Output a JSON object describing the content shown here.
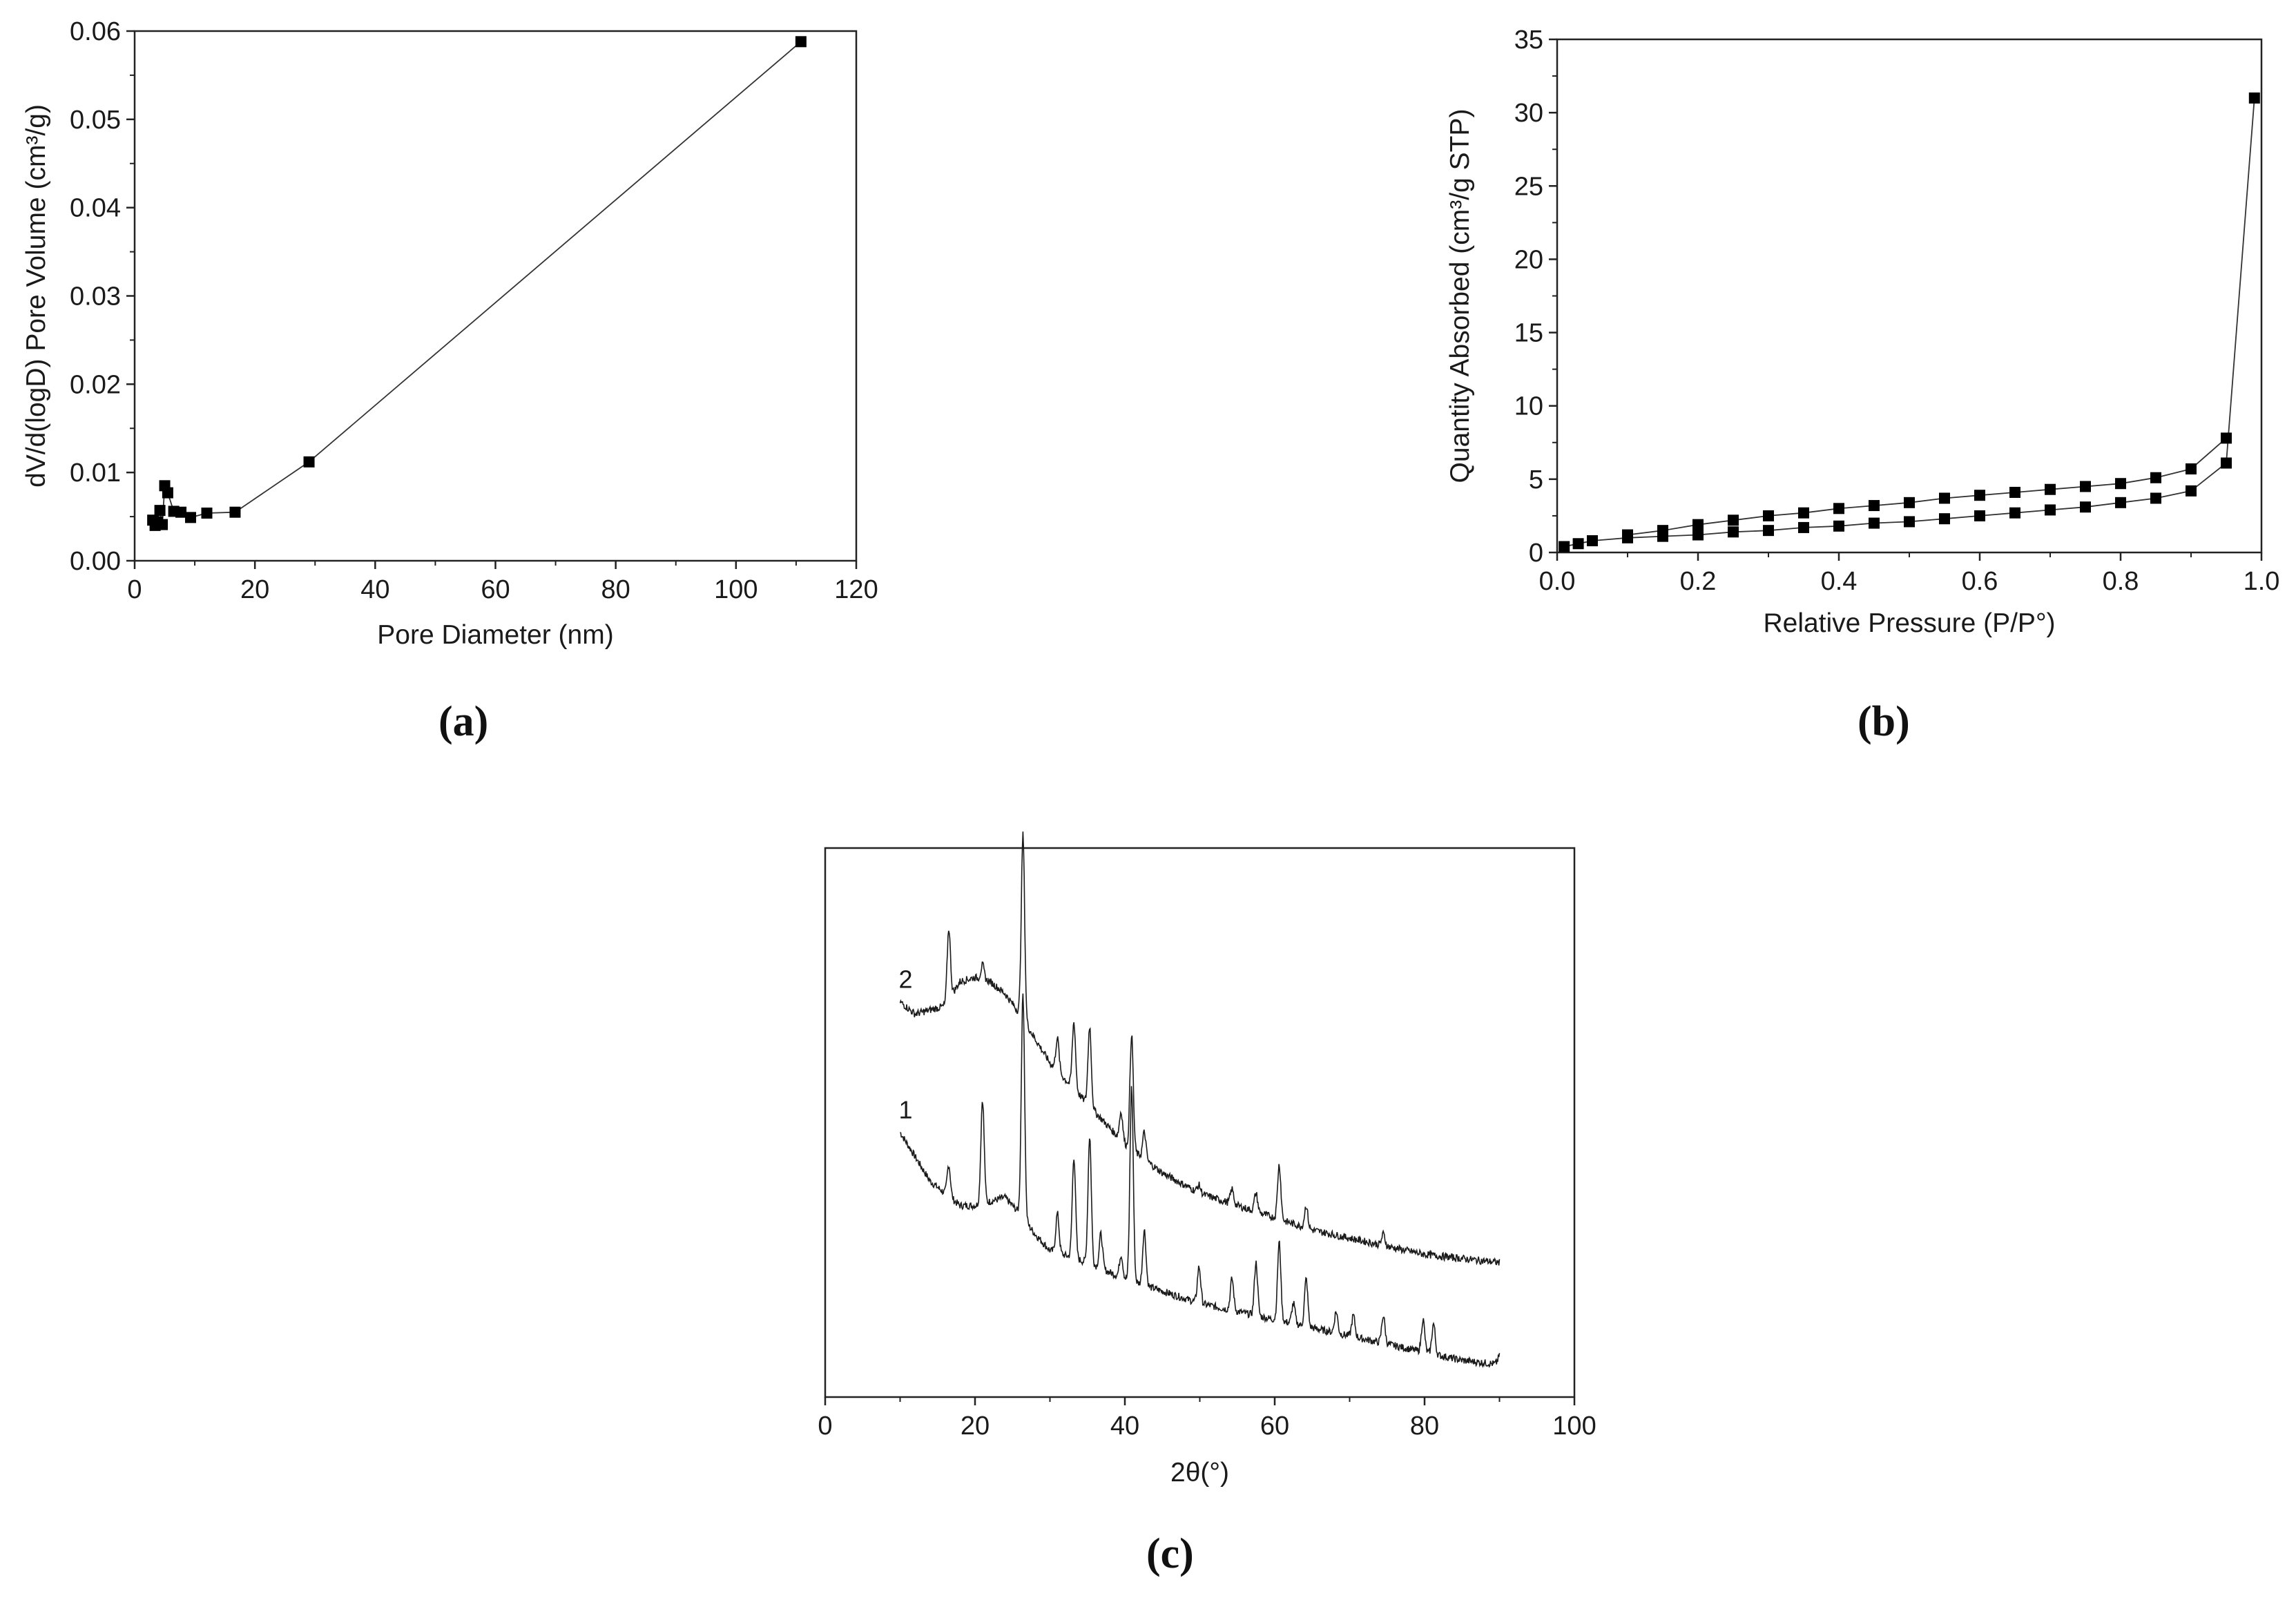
{
  "chart_data": [
    {
      "id": "a",
      "caption": "(a)",
      "type": "line",
      "xlabel": "Pore Diameter (nm)",
      "ylabel": "dV/d(logD) Pore Volume (cm³/g)",
      "xlim": [
        0,
        120
      ],
      "ylim": [
        0,
        0.06
      ],
      "xticks": [
        "0",
        "20",
        "40",
        "60",
        "80",
        "100",
        "120"
      ],
      "yticks": [
        "0.00",
        "0.01",
        "0.02",
        "0.03",
        "0.04",
        "0.05",
        "0.06"
      ],
      "marker": "square",
      "series": [
        {
          "x": [
            3.0,
            3.4,
            3.8,
            4.2,
            4.6,
            5.0,
            5.5,
            6.5,
            7.7,
            9.3,
            12.0,
            16.7,
            29.0,
            110.8
          ],
          "y": [
            0.0046,
            0.004,
            0.0044,
            0.0057,
            0.0041,
            0.0085,
            0.0077,
            0.0056,
            0.0055,
            0.0049,
            0.0054,
            0.0055,
            0.0112,
            0.0588
          ]
        }
      ]
    },
    {
      "id": "b",
      "caption": "(b)",
      "type": "line",
      "xlabel": "Relative Pressure (P/P°)",
      "ylabel": "Quantity Absorbed (cm³/g STP)",
      "xlim": [
        0,
        1.0
      ],
      "ylim": [
        0,
        35
      ],
      "xticks": [
        "0.0",
        "0.2",
        "0.4",
        "0.6",
        "0.8",
        "1.0"
      ],
      "yticks": [
        "0",
        "5",
        "10",
        "15",
        "20",
        "25",
        "30",
        "35"
      ],
      "marker": "square",
      "series": [
        {
          "x": [
            0.01,
            0.03,
            0.05,
            0.1,
            0.15,
            0.2,
            0.25,
            0.3,
            0.35,
            0.4,
            0.45,
            0.5,
            0.55,
            0.6,
            0.65,
            0.7,
            0.75,
            0.8,
            0.85,
            0.9,
            0.95,
            0.99
          ],
          "y": [
            0.4,
            0.6,
            0.8,
            1.0,
            1.1,
            1.2,
            1.4,
            1.5,
            1.7,
            1.8,
            2.0,
            2.1,
            2.3,
            2.5,
            2.7,
            2.9,
            3.1,
            3.4,
            3.7,
            4.2,
            6.1,
            31.0
          ]
        },
        {
          "x": [
            0.95,
            0.9,
            0.85,
            0.8,
            0.75,
            0.7,
            0.65,
            0.6,
            0.55,
            0.5,
            0.45,
            0.4,
            0.35,
            0.3,
            0.25,
            0.2,
            0.15,
            0.1
          ],
          "y": [
            7.8,
            5.7,
            5.1,
            4.7,
            4.5,
            4.3,
            4.1,
            3.9,
            3.7,
            3.4,
            3.2,
            3.0,
            2.7,
            2.5,
            2.2,
            1.9,
            1.5,
            1.2
          ]
        }
      ]
    },
    {
      "id": "c",
      "caption": "(c)",
      "type": "line",
      "xlabel": "2θ(°)",
      "ylabel": "",
      "xlim": [
        0,
        100
      ],
      "ylim": [
        0,
        1
      ],
      "xticks": [
        "0",
        "20",
        "40",
        "60",
        "80",
        "100"
      ],
      "yticks": [],
      "series": [
        {
          "name": "1",
          "baseline": [
            [
              10,
              0.65
            ],
            [
              12,
              0.59
            ],
            [
              14,
              0.53
            ],
            [
              16,
              0.5
            ],
            [
              18,
              0.47
            ],
            [
              20,
              0.47
            ],
            [
              22,
              0.48
            ],
            [
              24,
              0.49
            ],
            [
              26,
              0.45
            ],
            [
              28,
              0.4
            ],
            [
              30,
              0.36
            ],
            [
              35,
              0.33
            ],
            [
              40,
              0.29
            ],
            [
              45,
              0.26
            ],
            [
              50,
              0.23
            ],
            [
              55,
              0.21
            ],
            [
              60,
              0.19
            ],
            [
              65,
              0.17
            ],
            [
              70,
              0.15
            ],
            [
              75,
              0.13
            ],
            [
              80,
              0.11
            ],
            [
              85,
              0.09
            ],
            [
              90,
              0.08
            ]
          ],
          "peaks": [
            [
              16.5,
              0.57
            ],
            [
              21.0,
              0.73
            ],
            [
              26.4,
              0.99
            ],
            [
              31.0,
              0.45
            ],
            [
              33.2,
              0.59
            ],
            [
              35.3,
              0.64
            ],
            [
              36.8,
              0.4
            ],
            [
              39.5,
              0.35
            ],
            [
              40.9,
              0.76
            ],
            [
              42.6,
              0.41
            ],
            [
              49.9,
              0.32
            ],
            [
              54.3,
              0.29
            ],
            [
              57.5,
              0.33
            ],
            [
              60.6,
              0.38
            ],
            [
              62.5,
              0.23
            ],
            [
              64.2,
              0.29
            ],
            [
              68.2,
              0.21
            ],
            [
              70.5,
              0.2
            ],
            [
              74.5,
              0.2
            ],
            [
              79.8,
              0.19
            ],
            [
              81.2,
              0.18
            ],
            [
              90.0,
              0.1
            ]
          ]
        },
        {
          "name": "2",
          "baseline": [
            [
              10,
              0.97
            ],
            [
              12,
              0.94
            ],
            [
              14,
              0.95
            ],
            [
              16,
              0.96
            ],
            [
              18,
              1.02
            ],
            [
              20,
              1.03
            ],
            [
              22,
              1.02
            ],
            [
              24,
              0.99
            ],
            [
              26,
              0.94
            ],
            [
              28,
              0.88
            ],
            [
              30,
              0.82
            ],
            [
              35,
              0.72
            ],
            [
              40,
              0.62
            ],
            [
              45,
              0.55
            ],
            [
              50,
              0.5
            ],
            [
              55,
              0.47
            ],
            [
              60,
              0.44
            ],
            [
              65,
              0.41
            ],
            [
              70,
              0.39
            ],
            [
              75,
              0.37
            ],
            [
              80,
              0.35
            ],
            [
              85,
              0.34
            ],
            [
              90,
              0.33
            ]
          ],
          "peaks": [
            [
              16.5,
              1.15
            ],
            [
              21.0,
              1.06
            ],
            [
              26.4,
              1.38
            ],
            [
              31.0,
              0.88
            ],
            [
              33.2,
              0.92
            ],
            [
              35.3,
              0.91
            ],
            [
              39.5,
              0.7
            ],
            [
              40.9,
              0.89
            ],
            [
              42.6,
              0.65
            ],
            [
              49.9,
              0.52
            ],
            [
              54.3,
              0.51
            ],
            [
              57.5,
              0.5
            ],
            [
              60.6,
              0.57
            ],
            [
              64.2,
              0.47
            ],
            [
              74.5,
              0.4
            ],
            [
              90.0,
              0.33
            ]
          ]
        }
      ]
    }
  ]
}
